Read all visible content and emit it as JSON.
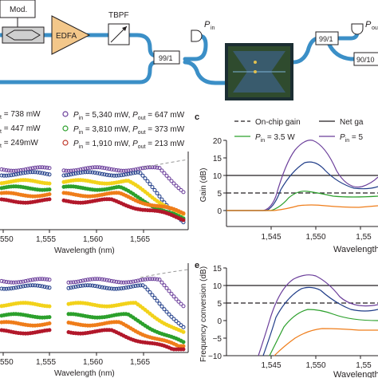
{
  "setup": {
    "mod_label": "Mod.",
    "edfa_label": "EDFA",
    "tbpf_label": "TBPF",
    "coupler_left": "99/1",
    "coupler_right": "99/1",
    "coupler_far_right": "90/10",
    "p_in": {
      "sym": "P",
      "sub": "in"
    },
    "p_out": {
      "sym": "P",
      "sub": "out"
    }
  },
  "panel_b": {
    "legend": [
      {
        "text_sub": "t",
        "text": " = 738 mW",
        "color": "#231f20"
      },
      {
        "text_sub": "t",
        "text": " = 447 mW",
        "color": "#231f20"
      },
      {
        "text_sub": "t",
        "text": " = 249mW",
        "color": "#231f20"
      },
      {
        "pin": "5,340 mW",
        "pout": "647 mW",
        "color": "#6a3d9a"
      },
      {
        "pin": "3,810 mW",
        "pout": "373 mW",
        "color": "#2ca02c"
      },
      {
        "pin": "1,910 mW",
        "pout": "213 mW",
        "color": "#c0392b"
      }
    ]
  },
  "panel_c": {
    "label": "c",
    "legend": {
      "onchip": "On-chip gain",
      "net": "Net ga",
      "pin_a": "= 3.5 W",
      "pin_b": "= 5"
    },
    "ylabel": "Gain (dB)",
    "xlabel": "Wavelength",
    "yticks": [
      "20",
      "15",
      "10",
      "5",
      "0"
    ],
    "xticks": [
      "1,545",
      "1,550",
      "1,55"
    ]
  },
  "panel_e": {
    "label": "e",
    "ylabel": "Frequency conversion (dB)",
    "xlabel": "Wavelength",
    "yticks": [
      "15",
      "10",
      "5",
      "0",
      "−5",
      "−10"
    ],
    "xticks": [
      "1,545",
      "1,550",
      "1,55"
    ]
  },
  "panel_left": {
    "xlabel_top": "Wavelength (nm)",
    "xlabel_bottom": "Wavelength (nm)",
    "xticks_top": [
      "550",
      "1,555",
      "1,560",
      "1,565"
    ],
    "xticks_bottom": [
      "550",
      "1,555",
      "1,560",
      "1,565"
    ]
  },
  "colors": {
    "fiber": "#3b8fc7",
    "edfa": "#f3c78a",
    "purple": "#6a3d9a",
    "blue": "#1f3c88",
    "yellow": "#f2d21b",
    "green": "#2ca02c",
    "orange": "#ef7d1a",
    "red": "#b2182b",
    "gray": "#999999"
  }
}
